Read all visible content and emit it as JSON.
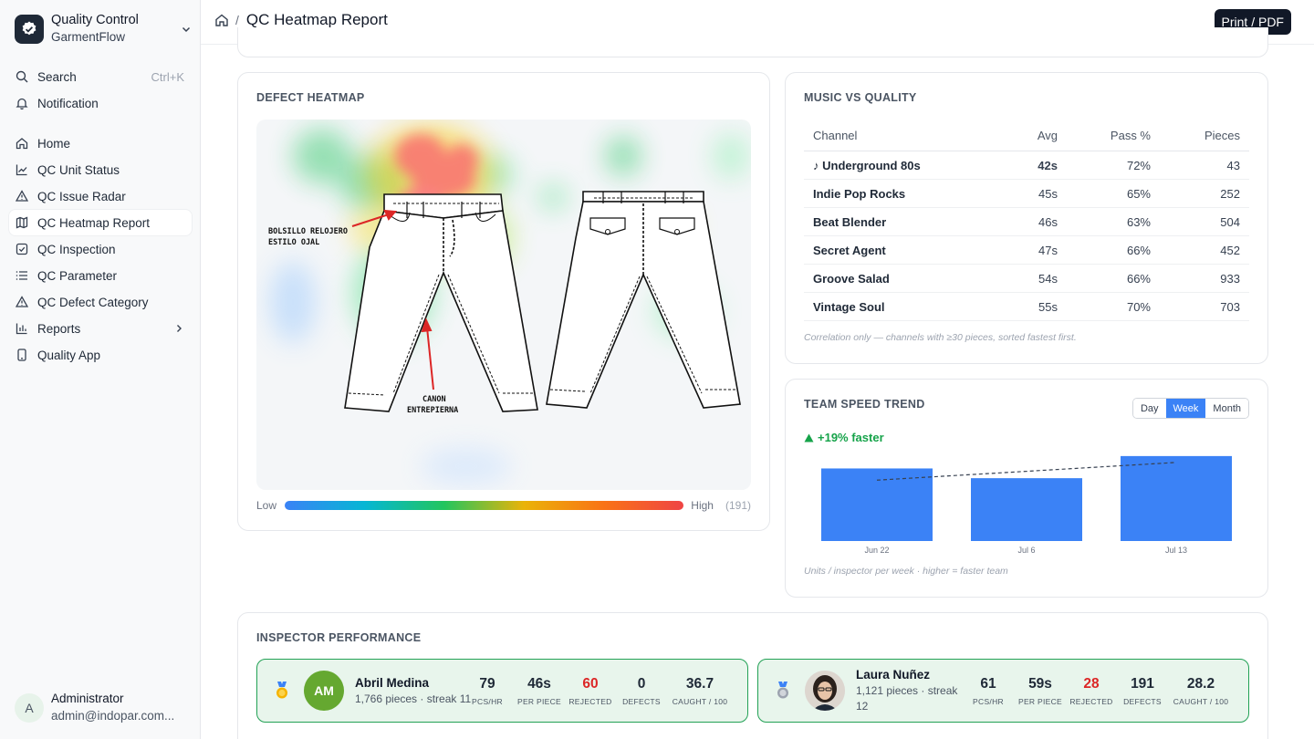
{
  "brand": {
    "title": "Quality Control",
    "subtitle": "GarmentFlow"
  },
  "top_nav": [
    {
      "label": "Search",
      "shortcut": "Ctrl+K",
      "icon": "search-icon"
    },
    {
      "label": "Notification",
      "icon": "bell-icon"
    }
  ],
  "nav": [
    {
      "label": "Home",
      "icon": "home-icon"
    },
    {
      "label": "QC Unit Status",
      "icon": "line-chart-icon"
    },
    {
      "label": "QC Issue Radar",
      "icon": "warning-icon"
    },
    {
      "label": "QC Heatmap Report",
      "icon": "map-icon",
      "active": true
    },
    {
      "label": "QC Inspection",
      "icon": "checkbox-icon"
    },
    {
      "label": "QC Parameter",
      "icon": "list-icon"
    },
    {
      "label": "QC Defect Category",
      "icon": "warning-icon"
    },
    {
      "label": "Reports",
      "icon": "bar-chart-icon",
      "has_children": true
    },
    {
      "label": "Quality App",
      "icon": "phone-icon"
    }
  ],
  "user": {
    "initial": "A",
    "name": "Administrator",
    "email": "admin@indopar.com..."
  },
  "header": {
    "title": "QC Heatmap Report",
    "separator": "/",
    "print_label": "Print / PDF"
  },
  "heatmap": {
    "title": "DEFECT HEATMAP",
    "annotations": [
      "BOLSILLO RELOJERO",
      "ESTILO OJAL",
      "CANON",
      "ENTREPIERNA"
    ],
    "legend_low": "Low",
    "legend_high": "High",
    "count": "(191)"
  },
  "music": {
    "title": "MUSIC VS QUALITY",
    "columns": [
      "Channel",
      "Avg",
      "Pass %",
      "Pieces"
    ],
    "rows": [
      {
        "channel": "♪ Underground 80s",
        "avg": "42s",
        "pass": "72%",
        "pieces": "43"
      },
      {
        "channel": "Indie Pop Rocks",
        "avg": "45s",
        "pass": "65%",
        "pieces": "252"
      },
      {
        "channel": "Beat Blender",
        "avg": "46s",
        "pass": "63%",
        "pieces": "504"
      },
      {
        "channel": "Secret Agent",
        "avg": "47s",
        "pass": "66%",
        "pieces": "452"
      },
      {
        "channel": "Groove Salad",
        "avg": "54s",
        "pass": "66%",
        "pieces": "933"
      },
      {
        "channel": "Vintage Soul",
        "avg": "55s",
        "pass": "70%",
        "pieces": "703"
      }
    ],
    "note": "Correlation only — channels with ≥30 pieces, sorted fastest first."
  },
  "trend": {
    "title": "TEAM SPEED TREND",
    "tabs": [
      "Day",
      "Week",
      "Month"
    ],
    "active_tab": "Week",
    "delta": "+19% faster",
    "note": "Units / inspector per week · higher = faster team"
  },
  "chart_data": {
    "type": "bar",
    "categories": [
      "Jun 22",
      "Jul 6",
      "Jul 13"
    ],
    "values": [
      82,
      71,
      96
    ],
    "trendline": [
      76,
      86,
      96
    ],
    "ylim": [
      0,
      100
    ],
    "grid": false,
    "colors": {
      "bar": "#3b82f6",
      "trend": "#374151"
    }
  },
  "inspectors": {
    "title": "INSPECTOR PERFORMANCE",
    "cards": [
      {
        "medal": "gold-medal-icon",
        "initials": "AM",
        "avatar_color": "#65a830",
        "name": "Abril Medina",
        "sub": "1,766 pieces · streak 11",
        "stats": [
          {
            "value": "79",
            "label": "PCS/HR"
          },
          {
            "value": "46s",
            "label": "PER PIECE"
          },
          {
            "value": "60",
            "label": "REJECTED",
            "alert": true
          },
          {
            "value": "0",
            "label": "DEFECTS"
          },
          {
            "value": "36.7",
            "label": "CAUGHT / 100"
          }
        ]
      },
      {
        "medal": "silver-medal-icon",
        "initials": "",
        "avatar_color": "#3a302b",
        "name": "Laura Nuñez",
        "sub": "1,121 pieces · streak 12",
        "stats": [
          {
            "value": "61",
            "label": "PCS/HR"
          },
          {
            "value": "59s",
            "label": "PER PIECE"
          },
          {
            "value": "28",
            "label": "REJECTED",
            "alert": true
          },
          {
            "value": "191",
            "label": "DEFECTS"
          },
          {
            "value": "28.2",
            "label": "CAUGHT / 100"
          }
        ]
      }
    ]
  }
}
